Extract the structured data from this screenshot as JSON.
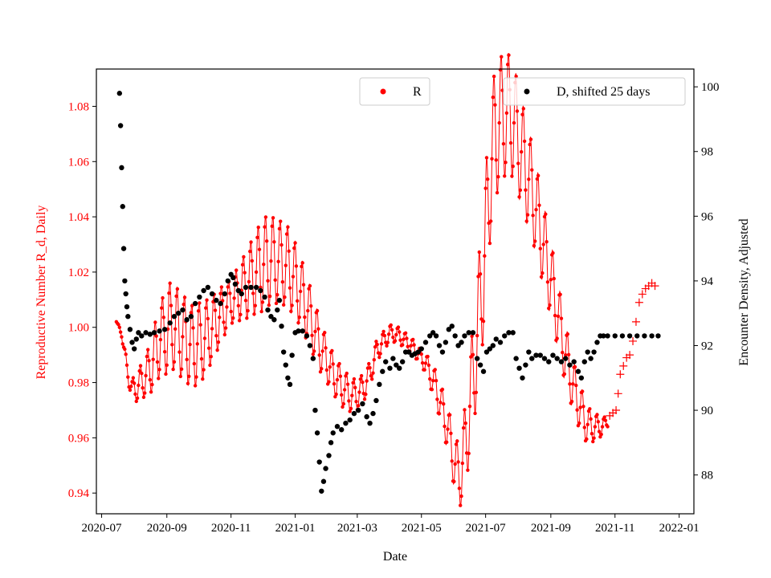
{
  "chart_data": {
    "type": "scatter",
    "title": "",
    "xlabel": "Date",
    "ylabel_left": "Reproductive Number R_d, Daily",
    "ylabel_right": "Encounter Density, Adjusted",
    "colors": {
      "left_axis": "#ff0000",
      "series_R": "#ff0000",
      "series_D": "#000000",
      "axes": "#000000"
    },
    "x_range": [
      "2020-06-26",
      "2022-01-15"
    ],
    "xticks": [
      "2020-07",
      "2020-09",
      "2020-11",
      "2021-01",
      "2021-03",
      "2021-05",
      "2021-07",
      "2021-09",
      "2021-11",
      "2022-01"
    ],
    "ylim_left": [
      0.9325,
      1.0935
    ],
    "yticks_left": [
      "0.94",
      "0.96",
      "0.98",
      "1.00",
      "1.02",
      "1.04",
      "1.06",
      "1.08"
    ],
    "ylim_right": [
      86.8,
      100.55
    ],
    "yticks_right": [
      "88",
      "90",
      "92",
      "94",
      "96",
      "98",
      "100"
    ],
    "legends": [
      {
        "label": "R",
        "position": "top-center"
      },
      {
        "label": "D, shifted 25 days",
        "position": "top-right"
      }
    ],
    "series": [
      {
        "name": "R",
        "axis": "left",
        "marker": "dot",
        "oscillation_note": "daily values oscillate around the trend with the weekly envelope shown below",
        "trend": [
          [
            "2020-07-15",
            1.002
          ],
          [
            "2020-07-20",
            0.998
          ],
          [
            "2020-07-25",
            0.985
          ],
          [
            "2020-07-30",
            0.977
          ],
          [
            "2020-08-05",
            0.979
          ],
          [
            "2020-08-15",
            0.984
          ],
          [
            "2020-08-25",
            0.995
          ],
          [
            "2020-09-05",
            1.001
          ],
          [
            "2020-09-15",
            0.997
          ],
          [
            "2020-09-25",
            0.993
          ],
          [
            "2020-10-05",
            0.995
          ],
          [
            "2020-10-15",
            1.0
          ],
          [
            "2020-10-25",
            1.006
          ],
          [
            "2020-11-05",
            1.011
          ],
          [
            "2020-11-15",
            1.015
          ],
          [
            "2020-11-25",
            1.02
          ],
          [
            "2020-12-05",
            1.024
          ],
          [
            "2020-12-15",
            1.024
          ],
          [
            "2020-12-25",
            1.022
          ],
          [
            "2021-01-05",
            1.014
          ],
          [
            "2021-01-15",
            1.004
          ],
          [
            "2021-01-25",
            0.993
          ],
          [
            "2021-02-05",
            0.984
          ],
          [
            "2021-02-15",
            0.978
          ],
          [
            "2021-02-25",
            0.975
          ],
          [
            "2021-03-05",
            0.977
          ],
          [
            "2021-03-12",
            0.982
          ],
          [
            "2021-03-20",
            0.992
          ],
          [
            "2021-04-01",
            0.998
          ],
          [
            "2021-04-10",
            0.997
          ],
          [
            "2021-04-25",
            0.992
          ],
          [
            "2021-05-05",
            0.987
          ],
          [
            "2021-05-15",
            0.978
          ],
          [
            "2021-05-25",
            0.965
          ],
          [
            "2021-06-01",
            0.952
          ],
          [
            "2021-06-05",
            0.946
          ],
          [
            "2021-06-10",
            0.952
          ],
          [
            "2021-06-15",
            0.968
          ],
          [
            "2021-06-20",
            0.985
          ],
          [
            "2021-06-25",
            1.005
          ],
          [
            "2021-07-01",
            1.03
          ],
          [
            "2021-07-05",
            1.055
          ],
          [
            "2021-07-10",
            1.07
          ],
          [
            "2021-07-15",
            1.075
          ],
          [
            "2021-07-22",
            1.078
          ],
          [
            "2021-07-28",
            1.074
          ],
          [
            "2021-08-05",
            1.062
          ],
          [
            "2021-08-15",
            1.048
          ],
          [
            "2021-08-25",
            1.03
          ],
          [
            "2021-09-05",
            1.01
          ],
          [
            "2021-09-15",
            0.99
          ],
          [
            "2021-09-25",
            0.975
          ],
          [
            "2021-10-05",
            0.965
          ],
          [
            "2021-10-10",
            0.964
          ],
          [
            "2021-10-20",
            0.964
          ],
          [
            "2021-10-25",
            0.966
          ]
        ],
        "amplitude": [
          [
            "2020-07-15",
            0.0
          ],
          [
            "2020-07-25",
            0.003
          ],
          [
            "2020-08-10",
            0.007
          ],
          [
            "2020-09-01",
            0.016
          ],
          [
            "2020-10-01",
            0.015
          ],
          [
            "2020-11-01",
            0.008
          ],
          [
            "2020-12-01",
            0.017
          ],
          [
            "2021-01-01",
            0.014
          ],
          [
            "2021-02-01",
            0.008
          ],
          [
            "2021-03-01",
            0.006
          ],
          [
            "2021-04-01",
            0.003
          ],
          [
            "2021-05-01",
            0.003
          ],
          [
            "2021-06-01",
            0.01
          ],
          [
            "2021-07-01",
            0.026
          ],
          [
            "2021-08-01",
            0.02
          ],
          [
            "2021-09-01",
            0.014
          ],
          [
            "2021-10-01",
            0.008
          ],
          [
            "2021-10-25",
            0.002
          ]
        ],
        "tail_points": [
          [
            "2021-10-27",
            0.968
          ],
          [
            "2021-10-30",
            0.969
          ],
          [
            "2021-11-02",
            0.97
          ],
          [
            "2021-11-04",
            0.976
          ],
          [
            "2021-11-06",
            0.983
          ],
          [
            "2021-11-09",
            0.986
          ],
          [
            "2021-11-12",
            0.989
          ],
          [
            "2021-11-15",
            0.99
          ],
          [
            "2021-11-18",
            0.995
          ],
          [
            "2021-11-21",
            1.002
          ],
          [
            "2021-11-24",
            1.009
          ],
          [
            "2021-11-27",
            1.012
          ],
          [
            "2021-11-30",
            1.014
          ],
          [
            "2021-12-03",
            1.015
          ],
          [
            "2021-12-06",
            1.016
          ],
          [
            "2021-12-09",
            1.015
          ]
        ]
      },
      {
        "name": "D, shifted 25 days",
        "axis": "right",
        "marker": "dot",
        "points": [
          [
            "2020-07-18",
            99.8
          ],
          [
            "2020-07-19",
            98.8
          ],
          [
            "2020-07-20",
            97.5
          ],
          [
            "2020-07-21",
            96.3
          ],
          [
            "2020-07-22",
            95.0
          ],
          [
            "2020-07-23",
            94.0
          ],
          [
            "2020-07-24",
            93.6
          ],
          [
            "2020-07-25",
            93.2
          ],
          [
            "2020-07-26",
            92.9
          ],
          [
            "2020-07-28",
            92.5
          ],
          [
            "2020-07-30",
            92.1
          ],
          [
            "2020-08-01",
            91.9
          ],
          [
            "2020-08-03",
            92.2
          ],
          [
            "2020-08-05",
            92.4
          ],
          [
            "2020-08-08",
            92.3
          ],
          [
            "2020-08-12",
            92.4
          ],
          [
            "2020-08-16",
            92.35
          ],
          [
            "2020-08-20",
            92.4
          ],
          [
            "2020-08-25",
            92.45
          ],
          [
            "2020-08-30",
            92.5
          ],
          [
            "2020-09-04",
            92.7
          ],
          [
            "2020-09-08",
            92.9
          ],
          [
            "2020-09-12",
            93.0
          ],
          [
            "2020-09-16",
            93.1
          ],
          [
            "2020-09-20",
            92.8
          ],
          [
            "2020-09-24",
            92.9
          ],
          [
            "2020-09-28",
            93.3
          ],
          [
            "2020-10-02",
            93.5
          ],
          [
            "2020-10-06",
            93.7
          ],
          [
            "2020-10-10",
            93.8
          ],
          [
            "2020-10-14",
            93.6
          ],
          [
            "2020-10-18",
            93.4
          ],
          [
            "2020-10-22",
            93.3
          ],
          [
            "2020-10-26",
            93.6
          ],
          [
            "2020-10-29",
            94.0
          ],
          [
            "2020-11-01",
            94.2
          ],
          [
            "2020-11-03",
            94.1
          ],
          [
            "2020-11-05",
            93.9
          ],
          [
            "2020-11-08",
            93.7
          ],
          [
            "2020-11-11",
            93.6
          ],
          [
            "2020-11-15",
            93.8
          ],
          [
            "2020-11-20",
            93.8
          ],
          [
            "2020-11-25",
            93.8
          ],
          [
            "2020-11-29",
            93.7
          ],
          [
            "2020-12-03",
            93.5
          ],
          [
            "2020-12-06",
            93.1
          ],
          [
            "2020-12-09",
            92.9
          ],
          [
            "2020-12-12",
            92.8
          ],
          [
            "2020-12-15",
            93.1
          ],
          [
            "2020-12-17",
            93.4
          ],
          [
            "2020-12-19",
            92.6
          ],
          [
            "2020-12-21",
            91.8
          ],
          [
            "2020-12-23",
            91.4
          ],
          [
            "2020-12-25",
            91.0
          ],
          [
            "2020-12-27",
            90.8
          ],
          [
            "2020-12-29",
            91.7
          ],
          [
            "2021-01-01",
            92.4
          ],
          [
            "2021-01-04",
            92.45
          ],
          [
            "2021-01-08",
            92.45
          ],
          [
            "2021-01-12",
            92.3
          ],
          [
            "2021-01-15",
            92.0
          ],
          [
            "2021-01-18",
            91.6
          ],
          [
            "2021-01-20",
            90.0
          ],
          [
            "2021-01-22",
            89.3
          ],
          [
            "2021-01-24",
            88.4
          ],
          [
            "2021-01-26",
            87.5
          ],
          [
            "2021-01-28",
            87.8
          ],
          [
            "2021-01-30",
            88.2
          ],
          [
            "2021-02-02",
            88.6
          ],
          [
            "2021-02-04",
            89.0
          ],
          [
            "2021-02-06",
            89.3
          ],
          [
            "2021-02-10",
            89.5
          ],
          [
            "2021-02-14",
            89.4
          ],
          [
            "2021-02-18",
            89.6
          ],
          [
            "2021-02-22",
            89.7
          ],
          [
            "2021-02-26",
            89.9
          ],
          [
            "2021-03-02",
            90.0
          ],
          [
            "2021-03-06",
            90.2
          ],
          [
            "2021-03-10",
            89.8
          ],
          [
            "2021-03-13",
            89.6
          ],
          [
            "2021-03-16",
            89.9
          ],
          [
            "2021-03-19",
            90.3
          ],
          [
            "2021-03-22",
            90.8
          ],
          [
            "2021-03-25",
            91.2
          ],
          [
            "2021-03-28",
            91.5
          ],
          [
            "2021-04-01",
            91.3
          ],
          [
            "2021-04-04",
            91.6
          ],
          [
            "2021-04-07",
            91.4
          ],
          [
            "2021-04-10",
            91.3
          ],
          [
            "2021-04-13",
            91.5
          ],
          [
            "2021-04-16",
            91.8
          ],
          [
            "2021-04-19",
            91.8
          ],
          [
            "2021-04-22",
            91.7
          ],
          [
            "2021-04-25",
            91.75
          ],
          [
            "2021-04-28",
            91.8
          ],
          [
            "2021-05-01",
            91.9
          ],
          [
            "2021-05-05",
            92.1
          ],
          [
            "2021-05-09",
            92.3
          ],
          [
            "2021-05-12",
            92.4
          ],
          [
            "2021-05-15",
            92.3
          ],
          [
            "2021-05-18",
            92.0
          ],
          [
            "2021-05-21",
            91.8
          ],
          [
            "2021-05-24",
            92.1
          ],
          [
            "2021-05-27",
            92.5
          ],
          [
            "2021-05-30",
            92.6
          ],
          [
            "2021-06-02",
            92.3
          ],
          [
            "2021-06-05",
            92.0
          ],
          [
            "2021-06-08",
            92.1
          ],
          [
            "2021-06-11",
            92.3
          ],
          [
            "2021-06-15",
            92.4
          ],
          [
            "2021-06-19",
            92.4
          ],
          [
            "2021-06-23",
            91.6
          ],
          [
            "2021-06-26",
            91.4
          ],
          [
            "2021-06-29",
            91.2
          ],
          [
            "2021-07-02",
            91.8
          ],
          [
            "2021-07-05",
            91.9
          ],
          [
            "2021-07-08",
            92.0
          ],
          [
            "2021-07-11",
            92.2
          ],
          [
            "2021-07-15",
            92.1
          ],
          [
            "2021-07-19",
            92.3
          ],
          [
            "2021-07-23",
            92.4
          ],
          [
            "2021-07-27",
            92.4
          ],
          [
            "2021-07-30",
            91.6
          ],
          [
            "2021-08-02",
            91.3
          ],
          [
            "2021-08-05",
            91.0
          ],
          [
            "2021-08-08",
            91.4
          ],
          [
            "2021-08-11",
            91.8
          ],
          [
            "2021-08-14",
            91.6
          ],
          [
            "2021-08-18",
            91.7
          ],
          [
            "2021-08-22",
            91.7
          ],
          [
            "2021-08-26",
            91.6
          ],
          [
            "2021-08-30",
            91.5
          ],
          [
            "2021-09-03",
            91.7
          ],
          [
            "2021-09-07",
            91.6
          ],
          [
            "2021-09-11",
            91.5
          ],
          [
            "2021-09-15",
            91.6
          ],
          [
            "2021-09-19",
            91.4
          ],
          [
            "2021-09-23",
            91.5
          ],
          [
            "2021-09-27",
            91.2
          ],
          [
            "2021-09-30",
            91.0
          ],
          [
            "2021-10-03",
            91.5
          ],
          [
            "2021-10-06",
            91.8
          ],
          [
            "2021-10-09",
            91.6
          ],
          [
            "2021-10-12",
            91.8
          ],
          [
            "2021-10-15",
            92.1
          ],
          [
            "2021-10-18",
            92.3
          ],
          [
            "2021-10-21",
            92.3
          ],
          [
            "2021-10-25",
            92.3
          ],
          [
            "2021-11-01",
            92.3
          ],
          [
            "2021-11-08",
            92.3
          ],
          [
            "2021-11-15",
            92.3
          ],
          [
            "2021-11-22",
            92.3
          ],
          [
            "2021-11-29",
            92.3
          ],
          [
            "2021-12-06",
            92.3
          ],
          [
            "2021-12-12",
            92.3
          ]
        ]
      }
    ]
  }
}
